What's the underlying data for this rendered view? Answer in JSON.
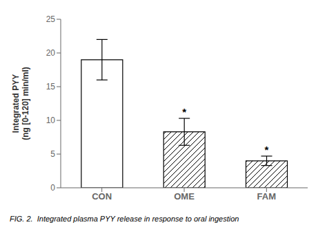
{
  "chart_data": {
    "type": "bar",
    "categories": [
      "CON",
      "OME",
      "FAM"
    ],
    "values": [
      19.0,
      8.3,
      4.0
    ],
    "errors": [
      3.0,
      2.0,
      0.7
    ],
    "color": "white",
    "ylabel": "Integrated PYY\n(ng [0-120] min/ml)",
    "ylim": [
      0,
      25
    ],
    "yticks": [
      0,
      5,
      10,
      15,
      20,
      25
    ],
    "grid": false,
    "annotations": [
      {
        "category": "OME",
        "text": "*"
      },
      {
        "category": "FAM",
        "text": "*"
      }
    ],
    "caption": "FIG. 2.  Integrated plasma PYY release in response to oral ingestion"
  }
}
